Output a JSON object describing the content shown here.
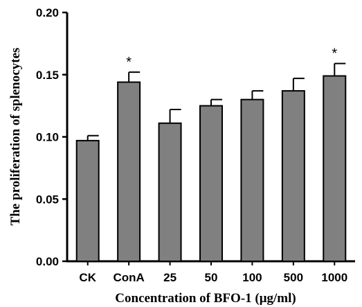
{
  "chart_data": {
    "type": "bar",
    "categories": [
      "CK",
      "ConA",
      "25",
      "50",
      "100",
      "500",
      "1000"
    ],
    "values": [
      0.097,
      0.144,
      0.111,
      0.125,
      0.13,
      0.137,
      0.149
    ],
    "errors": [
      0.004,
      0.008,
      0.011,
      0.005,
      0.007,
      0.01,
      0.01
    ],
    "significance": [
      "",
      "*",
      "",
      "",
      "",
      "",
      "*"
    ],
    "xlabel": "Concentration of BFO-1 (μg/ml)",
    "ylabel": "The proliferation of splenocytes",
    "ylim": [
      0,
      0.2
    ],
    "yticks": [
      "0.00",
      "0.05",
      "0.10",
      "0.15",
      "0.20"
    ],
    "bar_color": "#808080",
    "grid": false
  }
}
